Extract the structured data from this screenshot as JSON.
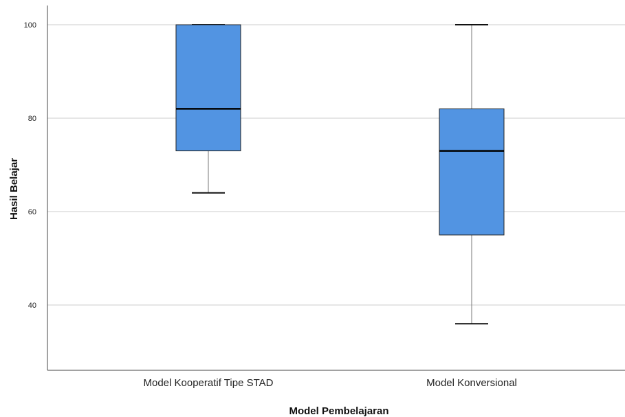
{
  "chart_data": {
    "type": "boxplot",
    "xlabel": "Model Pembelajaran",
    "ylabel": "Hasil Belajar",
    "ylim": [
      28,
      105
    ],
    "yticks": [
      40,
      60,
      80,
      100
    ],
    "ytick_labels": [
      "40",
      "60",
      "80",
      "100"
    ],
    "grid": "horizontal",
    "box_color": "#5294e2",
    "categories": [
      "Model Kooperatif Tipe STAD",
      "Model Konversional"
    ],
    "boxes": [
      {
        "category": "Model Kooperatif Tipe STAD",
        "min": 64,
        "q1": 73,
        "median": 82,
        "q3": 100,
        "max": 100
      },
      {
        "category": "Model Konversional",
        "min": 36,
        "q1": 55,
        "median": 73,
        "q3": 82,
        "max": 100
      }
    ]
  }
}
